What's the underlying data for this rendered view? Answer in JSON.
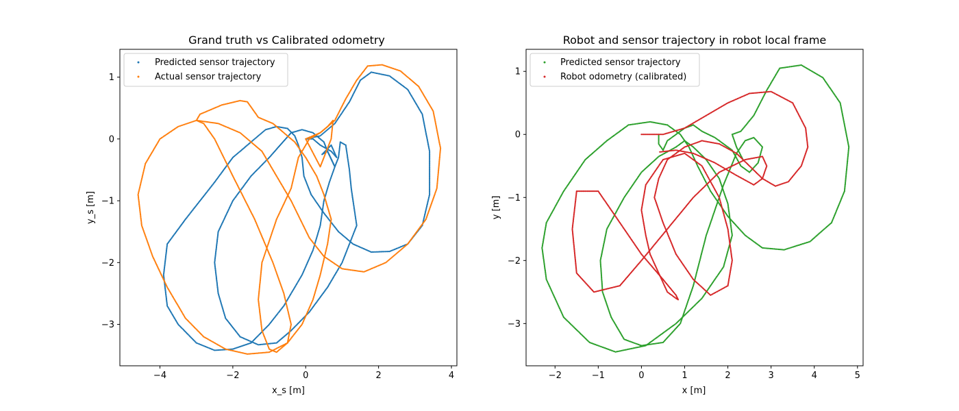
{
  "chart_data": [
    {
      "type": "scatter",
      "title": "Grand truth vs Calibrated odometry",
      "xlabel": "x_s [m]",
      "ylabel": "y_s [m]",
      "xlim": [
        -5.1,
        4.15
      ],
      "ylim": [
        -3.67,
        1.45
      ],
      "xticks": [
        -4,
        -2,
        0,
        2,
        4
      ],
      "yticks": [
        -3,
        -2,
        -1,
        0,
        1
      ],
      "legend": "upper-left",
      "series": [
        {
          "name": "Predicted sensor trajectory",
          "color": "#1f77b4",
          "x": [
            0.0,
            0.4,
            0.8,
            1.2,
            1.5,
            1.8,
            2.3,
            2.8,
            3.2,
            3.4,
            3.4,
            3.2,
            2.8,
            2.3,
            1.8,
            1.3,
            0.9,
            0.5,
            0.15,
            -0.05,
            -0.1,
            -0.2,
            -0.3,
            -0.5,
            -0.8,
            -1.1,
            -1.3,
            -1.5,
            -2.0,
            -2.5,
            -2.9,
            -3.3,
            -3.8,
            -3.9,
            -3.8,
            -3.5,
            -3.0,
            -2.5,
            -2.0,
            -1.5,
            -1.0,
            -0.6,
            -0.1,
            0.2,
            0.4,
            0.5,
            0.65,
            0.8,
            0.6,
            0.5,
            0.2,
            -0.1,
            -0.4,
            -0.7,
            -1.0,
            -1.5,
            -2.0,
            -2.4,
            -2.5,
            -2.4,
            -2.2,
            -1.8,
            -1.3,
            -0.8,
            -0.4,
            0.1,
            0.6,
            1.0,
            1.4,
            1.3,
            1.25,
            1.2,
            1.1,
            0.95,
            0.9,
            0.8,
            0.6,
            0.45,
            0.7,
            0.85,
            0.7,
            0.4,
            0.2,
            0.0
          ],
          "y": [
            0.0,
            0.05,
            0.25,
            0.6,
            0.95,
            1.08,
            1.02,
            0.8,
            0.4,
            -0.2,
            -0.9,
            -1.4,
            -1.7,
            -1.82,
            -1.83,
            -1.7,
            -1.5,
            -1.2,
            -0.9,
            -0.6,
            -0.3,
            -0.1,
            0.05,
            0.17,
            0.2,
            0.15,
            0.05,
            -0.05,
            -0.3,
            -0.7,
            -1.0,
            -1.3,
            -1.7,
            -2.2,
            -2.7,
            -3.0,
            -3.3,
            -3.42,
            -3.4,
            -3.3,
            -3.0,
            -2.7,
            -2.2,
            -1.8,
            -1.4,
            -1.0,
            -0.7,
            -0.45,
            -0.2,
            -0.05,
            0.1,
            0.15,
            0.1,
            -0.1,
            -0.3,
            -0.6,
            -1.0,
            -1.5,
            -2.0,
            -2.5,
            -2.9,
            -3.2,
            -3.33,
            -3.3,
            -3.1,
            -2.8,
            -2.4,
            -2.0,
            -1.4,
            -1.0,
            -0.8,
            -0.5,
            -0.1,
            -0.05,
            -0.3,
            -0.45,
            -0.2,
            -0.25,
            -0.1,
            -0.3,
            -0.2,
            -0.1,
            0.0,
            0.0
          ]
        },
        {
          "name": "Actual sensor trajectory",
          "color": "#ff7f0e",
          "x": [
            0.0,
            0.4,
            0.8,
            1.1,
            1.4,
            1.7,
            2.1,
            2.6,
            3.1,
            3.5,
            3.7,
            3.6,
            3.3,
            2.8,
            2.2,
            1.6,
            1.0,
            0.5,
            0.1,
            -0.15,
            -0.4,
            -0.8,
            -1.2,
            -1.8,
            -2.4,
            -3.0,
            -3.5,
            -4.0,
            -4.4,
            -4.6,
            -4.5,
            -4.2,
            -3.8,
            -3.3,
            -2.8,
            -2.2,
            -1.6,
            -1.0,
            -0.5,
            -0.1,
            0.2,
            0.4,
            0.6,
            0.7,
            0.5,
            0.3,
            0.0,
            -0.3,
            -0.6,
            -0.9,
            -1.3,
            -1.6,
            -1.8,
            -2.3,
            -2.9,
            -3.0,
            -2.8,
            -2.5,
            -2.0,
            -1.4,
            -0.9,
            -0.6,
            -0.4,
            -0.5,
            -0.8,
            -1.0,
            -1.2,
            -1.3,
            -1.2,
            -0.8,
            -0.4,
            -0.2,
            0.1,
            0.4,
            0.6,
            0.75,
            0.7,
            0.5,
            0.4,
            0.0
          ],
          "y": [
            0.0,
            0.1,
            0.3,
            0.65,
            0.95,
            1.18,
            1.2,
            1.1,
            0.85,
            0.45,
            -0.15,
            -0.8,
            -1.3,
            -1.7,
            -2.0,
            -2.15,
            -2.1,
            -1.9,
            -1.6,
            -1.3,
            -1.0,
            -0.6,
            -0.2,
            0.1,
            0.25,
            0.3,
            0.2,
            0.0,
            -0.4,
            -0.9,
            -1.4,
            -1.9,
            -2.4,
            -2.9,
            -3.2,
            -3.4,
            -3.48,
            -3.45,
            -3.3,
            -3.0,
            -2.6,
            -2.2,
            -1.7,
            -1.3,
            -0.9,
            -0.6,
            -0.3,
            -0.05,
            0.1,
            0.25,
            0.35,
            0.6,
            0.62,
            0.55,
            0.4,
            0.3,
            0.25,
            0.0,
            -0.6,
            -1.3,
            -2.0,
            -2.5,
            -3.0,
            -3.3,
            -3.45,
            -3.4,
            -3.1,
            -2.6,
            -2.0,
            -1.3,
            -0.8,
            -0.3,
            0.0,
            0.1,
            0.2,
            0.3,
            0.0,
            -0.3,
            -0.45,
            0.0
          ]
        }
      ]
    },
    {
      "type": "scatter",
      "title": "Robot and sensor trajectory in robot local frame",
      "xlabel": "x [m]",
      "ylabel": "y [m]",
      "xlim": [
        -2.67,
        5.13
      ],
      "ylim": [
        -3.67,
        1.35
      ],
      "xticks": [
        -2,
        -1,
        0,
        1,
        2,
        3,
        4,
        5
      ],
      "yticks": [
        -3,
        -2,
        -1,
        0,
        1
      ],
      "legend": "upper-left",
      "series": [
        {
          "name": "Predicted sensor trajectory",
          "color": "#2ca02c",
          "x": [
            2.35,
            2.2,
            2.1,
            2.3,
            2.6,
            2.9,
            3.2,
            3.7,
            4.2,
            4.6,
            4.8,
            4.7,
            4.4,
            3.9,
            3.3,
            2.8,
            2.4,
            2.0,
            1.6,
            1.3,
            1.1,
            0.9,
            0.6,
            0.2,
            -0.3,
            -0.8,
            -1.3,
            -1.8,
            -2.2,
            -2.3,
            -2.2,
            -1.8,
            -1.2,
            -0.6,
            0.1,
            0.8,
            1.4,
            1.9,
            2.1,
            2.0,
            1.8,
            1.5,
            1.2,
            1.0,
            0.8,
            0.4,
            0.0,
            -0.4,
            -0.8,
            -0.95,
            -0.9,
            -0.7,
            -0.4,
            0.0,
            0.5,
            0.9,
            1.2,
            1.5,
            1.9,
            2.2,
            2.4,
            2.6,
            2.8,
            2.7,
            2.5,
            2.3,
            2.1,
            1.7,
            1.4,
            1.2,
            1.0,
            0.9,
            0.6,
            0.5,
            0.4,
            0.4
          ],
          "y": [
            -0.4,
            -0.2,
            0.0,
            0.05,
            0.3,
            0.7,
            1.05,
            1.1,
            0.9,
            0.5,
            -0.2,
            -0.9,
            -1.4,
            -1.7,
            -1.83,
            -1.8,
            -1.6,
            -1.3,
            -0.9,
            -0.5,
            -0.2,
            0.0,
            0.15,
            0.2,
            0.15,
            -0.1,
            -0.4,
            -0.9,
            -1.4,
            -1.8,
            -2.3,
            -2.9,
            -3.3,
            -3.45,
            -3.35,
            -3.0,
            -2.6,
            -2.1,
            -1.6,
            -1.1,
            -0.7,
            -0.4,
            -0.2,
            -0.1,
            -0.2,
            -0.35,
            -0.6,
            -1.0,
            -1.5,
            -2.0,
            -2.5,
            -2.9,
            -3.25,
            -3.35,
            -3.3,
            -3.0,
            -2.4,
            -1.6,
            -0.8,
            -0.3,
            -0.1,
            -0.05,
            -0.2,
            -0.45,
            -0.6,
            -0.5,
            -0.25,
            -0.05,
            0.05,
            0.15,
            0.1,
            0.05,
            -0.1,
            -0.25,
            -0.15,
            0.0
          ]
        },
        {
          "name": "Robot odometry (calibrated)",
          "color": "#d62728",
          "x": [
            0.0,
            0.5,
            1.0,
            1.5,
            2.0,
            2.5,
            3.0,
            3.5,
            3.8,
            3.85,
            3.7,
            3.4,
            3.1,
            2.8,
            2.5,
            2.2,
            1.8,
            1.4,
            1.0,
            0.6,
            0.4,
            0.3,
            0.5,
            0.8,
            1.2,
            1.6,
            2.0,
            2.1,
            2.0,
            1.8,
            1.4,
            1.0,
            0.5,
            0.1,
            0.0,
            0.1,
            0.2,
            0.4,
            0.6,
            0.8,
            0.85,
            0.8,
            0.5,
            0.0,
            -0.5,
            -1.0,
            -1.5,
            -1.6,
            -1.5,
            -1.1,
            -0.5,
            0.0,
            0.6,
            1.2,
            1.8,
            2.4,
            2.8,
            2.9,
            2.8,
            2.6,
            2.2,
            1.7,
            1.2,
            0.8,
            0.4
          ],
          "y": [
            0.0,
            0.0,
            0.1,
            0.3,
            0.5,
            0.65,
            0.68,
            0.5,
            0.1,
            -0.2,
            -0.5,
            -0.75,
            -0.82,
            -0.7,
            -0.5,
            -0.3,
            -0.15,
            -0.1,
            -0.2,
            -0.4,
            -0.7,
            -1.0,
            -1.4,
            -1.9,
            -2.3,
            -2.55,
            -2.4,
            -2.0,
            -1.5,
            -1.0,
            -0.5,
            -0.3,
            -0.4,
            -0.8,
            -1.2,
            -1.6,
            -1.9,
            -2.2,
            -2.5,
            -2.6,
            -2.62,
            -2.55,
            -2.3,
            -1.9,
            -1.4,
            -0.9,
            -0.9,
            -1.5,
            -2.2,
            -2.5,
            -2.4,
            -2.0,
            -1.5,
            -1.0,
            -0.6,
            -0.4,
            -0.35,
            -0.5,
            -0.7,
            -0.8,
            -0.65,
            -0.45,
            -0.3,
            -0.25,
            -0.28
          ]
        }
      ]
    }
  ]
}
